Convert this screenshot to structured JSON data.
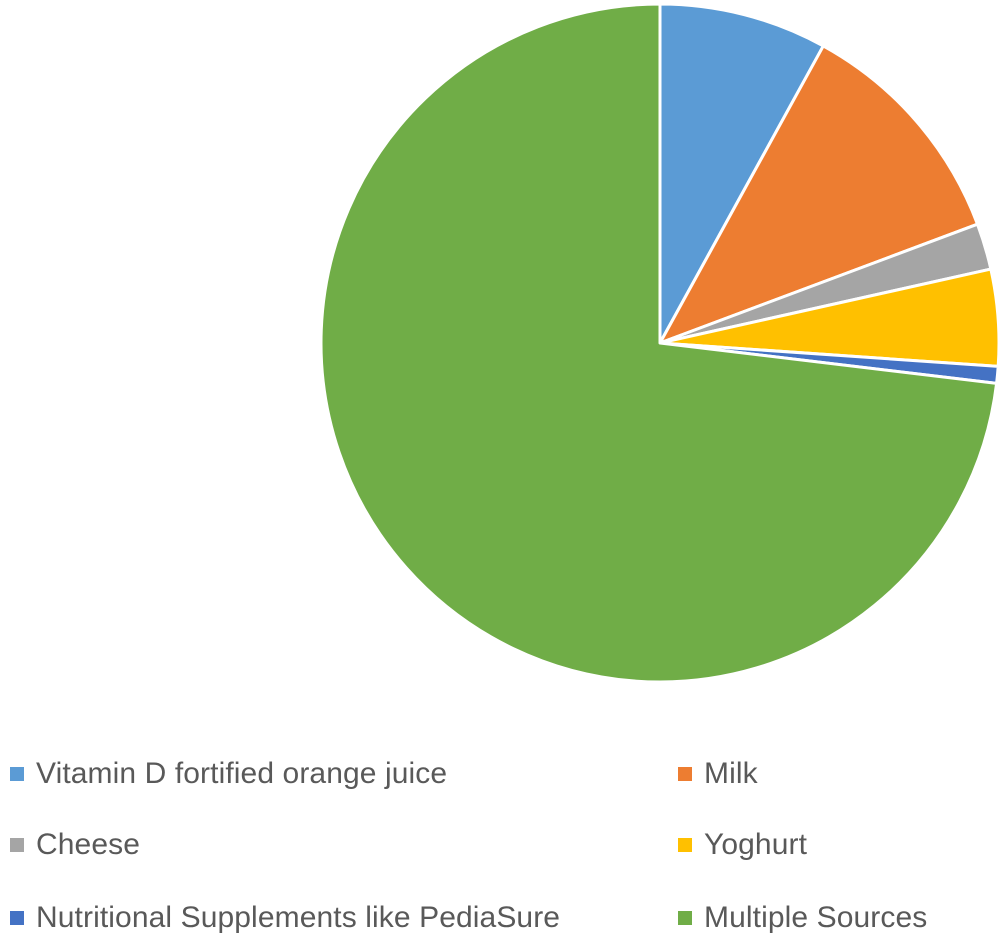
{
  "chart_data": {
    "type": "pie",
    "title": "",
    "categories": [
      "Vitamin D fortified orange juice",
      "Milk",
      "Cheese",
      "Yoghurt",
      "Nutritional Supplements like PediaSure",
      "Multiple Sources"
    ],
    "values": [
      8.0,
      11.3,
      2.2,
      4.6,
      0.8,
      73.1
    ],
    "colors": [
      "#5B9BD5",
      "#ED7D31",
      "#A5A5A5",
      "#FFC000",
      "#4472C4",
      "#70AD47"
    ],
    "legend_position": "bottom",
    "start_angle": "top",
    "direction": "clockwise"
  },
  "legend": {
    "items": [
      {
        "label": "Vitamin D fortified orange juice",
        "color": "#5B9BD5"
      },
      {
        "label": "Milk",
        "color": "#ED7D31"
      },
      {
        "label": "Cheese",
        "color": "#A5A5A5"
      },
      {
        "label": "Yoghurt",
        "color": "#FFC000"
      },
      {
        "label": "Nutritional Supplements like PediaSure",
        "color": "#4472C4"
      },
      {
        "label": "Multiple Sources",
        "color": "#70AD47"
      }
    ]
  }
}
